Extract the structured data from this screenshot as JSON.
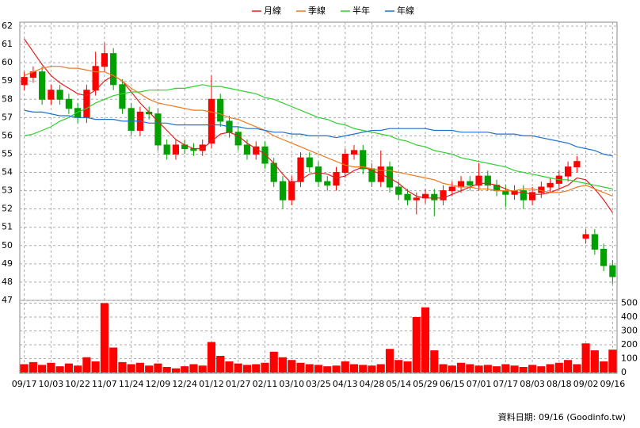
{
  "chart_data": [
    {
      "type": "candlestick",
      "categories": [
        "09/17",
        null,
        null,
        "10/03",
        null,
        null,
        "10/22",
        null,
        null,
        "11/07",
        null,
        null,
        "11/24",
        null,
        null,
        "12/09",
        null,
        null,
        "12/24",
        null,
        null,
        "01/12",
        null,
        null,
        "01/27",
        null,
        null,
        "02/11",
        null,
        null,
        "03/10",
        null,
        null,
        "03/25",
        null,
        null,
        "04/13",
        null,
        null,
        "04/28",
        null,
        null,
        "05/14",
        null,
        null,
        "05/29",
        null,
        null,
        "06/15",
        null,
        null,
        "07/01",
        null,
        null,
        "07/17",
        null,
        null,
        "08/03",
        null,
        null,
        "08/18",
        null,
        null,
        "09/02",
        null,
        null,
        "09/16"
      ],
      "open": [
        58.8,
        59.2,
        59.5,
        58.0,
        58.5,
        58.0,
        57.5,
        57.0,
        58.5,
        59.8,
        60.5,
        58.8,
        57.5,
        56.3,
        57.3,
        57.2,
        55.5,
        55.0,
        55.5,
        55.3,
        55.2,
        55.6,
        58.0,
        56.8,
        56.2,
        55.5,
        55.0,
        55.4,
        54.5,
        53.5,
        52.5,
        53.5,
        54.8,
        54.3,
        53.5,
        53.3,
        54.0,
        55.0,
        55.2,
        54.2,
        53.5,
        54.3,
        53.2,
        52.8,
        52.5,
        52.6,
        52.8,
        52.5,
        53.0,
        53.2,
        53.5,
        53.3,
        53.8,
        53.3,
        53.0,
        52.8,
        53.0,
        52.5,
        52.9,
        53.2,
        53.4,
        53.8,
        54.3,
        50.4,
        50.6,
        49.8,
        48.9
      ],
      "high": [
        59.5,
        59.8,
        59.8,
        58.8,
        58.8,
        58.3,
        57.8,
        58.8,
        60.6,
        61.1,
        60.8,
        59.1,
        57.8,
        57.6,
        57.6,
        57.5,
        55.8,
        55.8,
        55.8,
        55.6,
        55.8,
        59.3,
        58.3,
        57.1,
        56.5,
        55.8,
        55.7,
        55.7,
        54.8,
        53.8,
        53.8,
        55.1,
        55.1,
        54.6,
        53.8,
        54.3,
        55.3,
        55.5,
        55.5,
        54.5,
        55.2,
        54.6,
        53.5,
        53.1,
        52.9,
        53.1,
        53.1,
        53.3,
        53.5,
        53.8,
        53.8,
        54.5,
        54.1,
        53.6,
        53.3,
        53.3,
        53.3,
        53.2,
        53.5,
        53.7,
        54.1,
        54.6,
        54.9,
        50.9,
        50.9,
        50.1,
        49.2
      ],
      "low": [
        58.5,
        58.9,
        57.7,
        57.7,
        57.7,
        57.2,
        56.7,
        56.7,
        58.2,
        59.5,
        58.5,
        57.2,
        56.0,
        56.0,
        56.9,
        55.2,
        54.7,
        54.7,
        55.0,
        54.9,
        54.9,
        55.3,
        56.5,
        55.9,
        55.2,
        54.7,
        54.7,
        54.2,
        53.2,
        52.0,
        52.2,
        53.2,
        54.0,
        53.2,
        53.0,
        53.0,
        53.7,
        54.7,
        53.9,
        53.2,
        53.2,
        52.9,
        52.5,
        52.2,
        51.7,
        52.3,
        51.6,
        52.2,
        52.7,
        52.9,
        53.0,
        53.0,
        53.0,
        52.7,
        52.1,
        52.5,
        52.0,
        52.2,
        52.6,
        52.9,
        53.1,
        53.5,
        54.0,
        50.1,
        49.5,
        48.6,
        47.9
      ],
      "close": [
        59.2,
        59.5,
        58.0,
        58.5,
        58.0,
        57.5,
        57.0,
        58.5,
        59.8,
        60.5,
        58.8,
        57.5,
        56.3,
        57.3,
        57.2,
        55.5,
        55.0,
        55.5,
        55.3,
        55.2,
        55.5,
        58.0,
        56.8,
        56.2,
        55.5,
        55.0,
        55.4,
        54.5,
        53.5,
        52.5,
        53.5,
        54.8,
        54.3,
        53.5,
        53.3,
        54.0,
        55.0,
        55.2,
        54.2,
        53.5,
        54.3,
        53.2,
        52.8,
        52.5,
        52.6,
        52.8,
        52.5,
        53.0,
        53.2,
        53.5,
        53.3,
        53.8,
        53.3,
        53.0,
        52.8,
        53.0,
        52.5,
        52.9,
        53.2,
        53.4,
        53.8,
        54.3,
        54.6,
        50.6,
        49.8,
        48.9,
        48.3
      ],
      "up_color": "#ff0000",
      "down_color": "#00a000",
      "lines": [
        {
          "name": "月線",
          "color": "#e02020",
          "values": [
            61.3,
            60.6,
            59.9,
            59.3,
            58.9,
            58.6,
            58.3,
            58.2,
            58.5,
            59.0,
            59.3,
            59.0,
            58.4,
            57.8,
            57.3,
            56.8,
            56.3,
            55.8,
            55.5,
            55.3,
            55.3,
            55.7,
            56.1,
            56.2,
            56.0,
            55.6,
            55.3,
            55.0,
            54.5,
            53.9,
            53.4,
            53.6,
            53.9,
            54.0,
            53.9,
            53.7,
            53.8,
            54.1,
            54.3,
            54.1,
            53.9,
            53.7,
            53.4,
            53.0,
            52.7,
            52.6,
            52.6,
            52.6,
            52.8,
            53.0,
            53.2,
            53.4,
            53.4,
            53.3,
            53.1,
            52.9,
            52.9,
            52.8,
            52.8,
            52.9,
            53.1,
            53.3,
            53.7,
            53.6,
            53.1,
            52.5,
            51.8
          ]
        },
        {
          "name": "季線",
          "color": "#f07820",
          "values": [
            59.3,
            59.5,
            59.7,
            59.8,
            59.8,
            59.7,
            59.7,
            59.6,
            59.5,
            59.5,
            59.3,
            59.0,
            58.6,
            58.3,
            58.0,
            57.8,
            57.7,
            57.6,
            57.5,
            57.4,
            57.4,
            57.3,
            57.2,
            57.0,
            56.9,
            56.7,
            56.5,
            56.3,
            56.0,
            55.8,
            55.6,
            55.4,
            55.2,
            55.0,
            54.8,
            54.6,
            54.4,
            54.3,
            54.3,
            54.2,
            54.1,
            54.1,
            54.0,
            53.9,
            53.8,
            53.7,
            53.6,
            53.4,
            53.3,
            53.2,
            53.2,
            53.1,
            53.1,
            53.0,
            53.0,
            53.0,
            53.1,
            53.1,
            53.0,
            52.9,
            52.9,
            53.0,
            53.2,
            53.3,
            53.1,
            52.9,
            52.7
          ]
        },
        {
          "name": "半年",
          "color": "#30d030",
          "values": [
            56.0,
            56.1,
            56.3,
            56.5,
            56.8,
            57.0,
            57.3,
            57.5,
            57.8,
            58.0,
            58.2,
            58.3,
            58.4,
            58.4,
            58.5,
            58.5,
            58.5,
            58.6,
            58.6,
            58.7,
            58.8,
            58.7,
            58.7,
            58.6,
            58.5,
            58.4,
            58.3,
            58.1,
            58.0,
            57.8,
            57.6,
            57.4,
            57.2,
            57.0,
            56.9,
            56.7,
            56.6,
            56.4,
            56.3,
            56.2,
            56.1,
            56.0,
            55.8,
            55.7,
            55.5,
            55.4,
            55.2,
            55.1,
            55.0,
            54.8,
            54.7,
            54.6,
            54.5,
            54.4,
            54.3,
            54.1,
            54.0,
            53.9,
            53.8,
            53.7,
            53.6,
            53.6,
            53.5,
            53.4,
            53.3,
            53.2,
            53.1
          ]
        },
        {
          "name": "年線",
          "color": "#2070d0",
          "values": [
            57.4,
            57.3,
            57.3,
            57.2,
            57.1,
            57.1,
            57.0,
            57.0,
            56.9,
            56.9,
            56.9,
            56.8,
            56.8,
            56.8,
            56.7,
            56.7,
            56.7,
            56.6,
            56.6,
            56.6,
            56.6,
            56.6,
            56.6,
            56.5,
            56.5,
            56.4,
            56.4,
            56.3,
            56.2,
            56.2,
            56.1,
            56.1,
            56.0,
            56.0,
            56.0,
            55.9,
            56.0,
            56.1,
            56.2,
            56.3,
            56.3,
            56.4,
            56.4,
            56.4,
            56.4,
            56.4,
            56.3,
            56.3,
            56.3,
            56.2,
            56.2,
            56.2,
            56.2,
            56.1,
            56.1,
            56.1,
            56.0,
            56.0,
            55.9,
            55.8,
            55.7,
            55.6,
            55.4,
            55.3,
            55.2,
            55.0,
            54.9
          ]
        }
      ],
      "ylim": [
        47,
        62
      ],
      "yticks": [
        47,
        48,
        49,
        50,
        51,
        52,
        53,
        54,
        55,
        56,
        57,
        58,
        59,
        60,
        61,
        62
      ],
      "grid": true
    },
    {
      "type": "bar",
      "color": "#ff0000",
      "values": [
        60,
        75,
        55,
        70,
        45,
        65,
        50,
        110,
        80,
        500,
        180,
        75,
        60,
        70,
        50,
        65,
        40,
        30,
        45,
        60,
        50,
        220,
        120,
        80,
        65,
        55,
        60,
        70,
        150,
        110,
        90,
        70,
        60,
        55,
        45,
        50,
        80,
        60,
        55,
        50,
        60,
        170,
        90,
        80,
        400,
        470,
        160,
        60,
        50,
        70,
        60,
        50,
        55,
        45,
        60,
        50,
        40,
        55,
        45,
        60,
        70,
        90,
        60,
        210,
        160,
        80,
        165
      ],
      "ylim": [
        0,
        520
      ],
      "yticks": [
        0,
        100,
        200,
        300,
        400,
        500
      ],
      "grid": true
    }
  ],
  "footer": "資料日期: 09/16 (Goodinfo.tw)"
}
